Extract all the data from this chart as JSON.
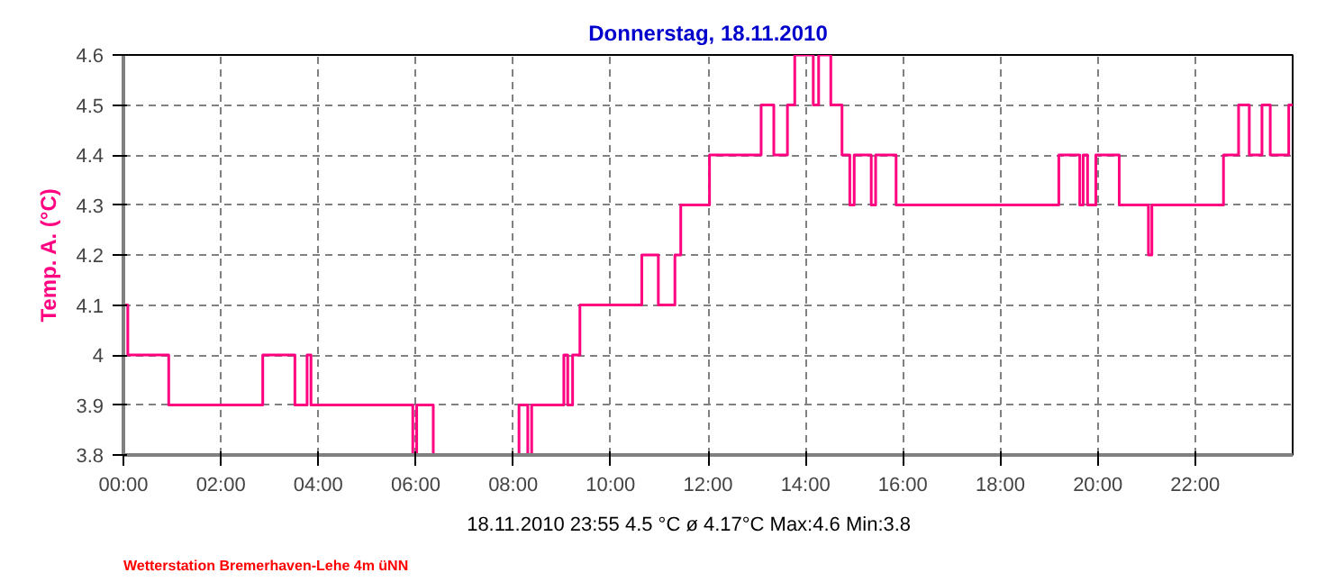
{
  "chart_data": {
    "type": "step",
    "title": "Donnerstag, 18.11.2010",
    "ylabel": "Temp. A. (°C)",
    "x": [
      0,
      0.09,
      0.93,
      2.86,
      3.52,
      3.77,
      3.85,
      5.94,
      6.02,
      6.36,
      8.12,
      8.3,
      8.38,
      9.04,
      9.12,
      9.22,
      9.37,
      10.64,
      10.98,
      11.32,
      11.44,
      12.03,
      13.09,
      13.35,
      13.63,
      13.78,
      14.16,
      14.27,
      14.52,
      14.75,
      14.91,
      15.0,
      15.35,
      15.44,
      15.86,
      19.2,
      19.63,
      19.7,
      19.79,
      19.96,
      20.44,
      21.04,
      21.11,
      22.58,
      22.89,
      23.11,
      23.37,
      23.54,
      23.92,
      24
    ],
    "series": [
      {
        "color": "#ff0080",
        "values": [
          4.1,
          4.0,
          3.9,
          4.0,
          3.9,
          4.0,
          3.9,
          3.8,
          3.9,
          3.8,
          3.9,
          3.8,
          3.9,
          4.0,
          3.9,
          4.0,
          4.1,
          4.2,
          4.1,
          4.2,
          4.3,
          4.4,
          4.5,
          4.4,
          4.5,
          4.6,
          4.5,
          4.6,
          4.5,
          4.4,
          4.3,
          4.4,
          4.3,
          4.4,
          4.3,
          4.4,
          4.3,
          4.4,
          4.3,
          4.4,
          4.3,
          4.2,
          4.3,
          4.4,
          4.5,
          4.4,
          4.5,
          4.4,
          4.5,
          4.5
        ]
      }
    ],
    "xlim": [
      0,
      24
    ],
    "xticks": [
      {
        "value": 0,
        "label": "00:00"
      },
      {
        "value": 2,
        "label": "02:00"
      },
      {
        "value": 4,
        "label": "04:00"
      },
      {
        "value": 6,
        "label": "06:00"
      },
      {
        "value": 8,
        "label": "08:00"
      },
      {
        "value": 10,
        "label": "10:00"
      },
      {
        "value": 12,
        "label": "12:00"
      },
      {
        "value": 14,
        "label": "14:00"
      },
      {
        "value": 16,
        "label": "16:00"
      },
      {
        "value": 18,
        "label": "18:00"
      },
      {
        "value": 20,
        "label": "20:00"
      },
      {
        "value": 22,
        "label": "22:00"
      }
    ],
    "ylim": [
      3.8,
      4.6
    ],
    "yticks": [
      3.8,
      3.9,
      4,
      4.1,
      4.2,
      4.3,
      4.4,
      4.5,
      4.6
    ],
    "grid": true,
    "line_style": "solid",
    "marker": "none",
    "annotations": [
      "18.11.2010  23:55   4.5 °C   ø 4.17°C  Max:4.6  Min:3.8",
      "Wetterstation Bremerhaven-Lehe 4m üNN"
    ]
  }
}
